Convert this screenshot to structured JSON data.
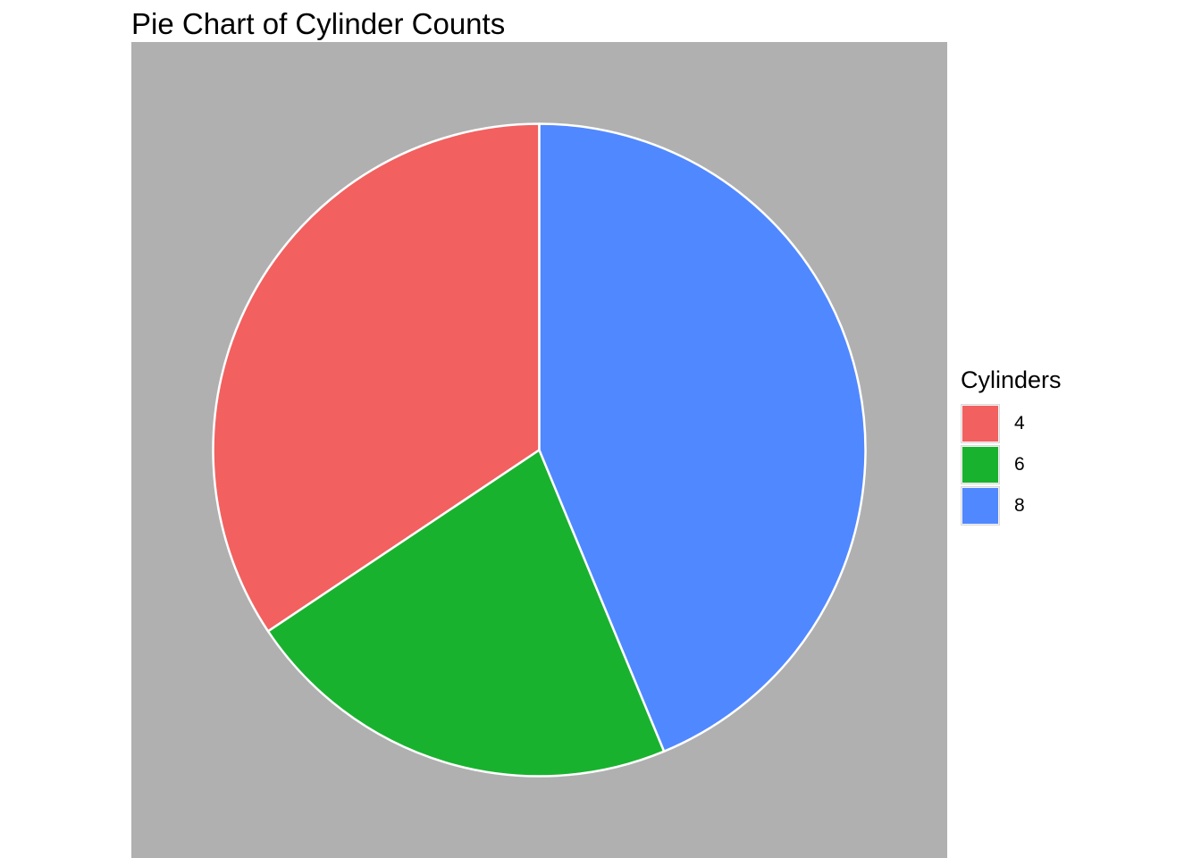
{
  "chart_data": {
    "type": "pie",
    "title": "Pie Chart of Cylinder Counts",
    "legend_title": "Cylinders",
    "legend_position": "right",
    "panel_background": "#b0b0b0",
    "slice_border": "#ffffff",
    "slices": [
      {
        "label": "4",
        "value": 11,
        "color": "#f26060"
      },
      {
        "label": "6",
        "value": 7,
        "color": "#19b22f"
      },
      {
        "label": "8",
        "value": 14,
        "color": "#5088ff"
      }
    ],
    "start": "12 o'clock",
    "direction": "counterclockwise"
  }
}
